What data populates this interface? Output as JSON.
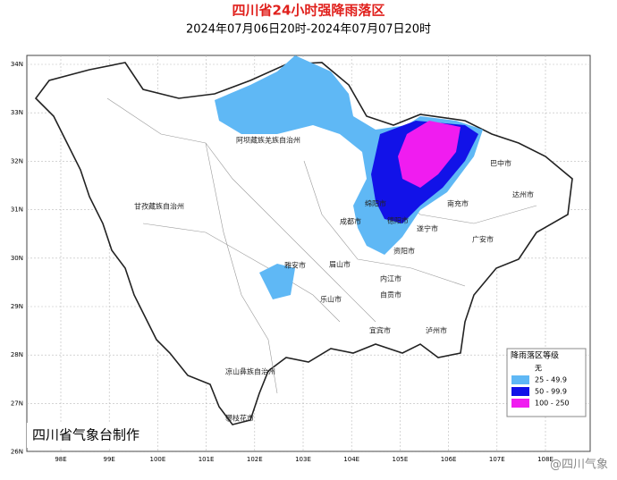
{
  "header": {
    "title": "四川省24小时强降雨落区",
    "subtitle": "2024年07月06日20时-2024年07月07日20时"
  },
  "axes": {
    "lat_labels": [
      "34N",
      "33N",
      "32N",
      "31N",
      "30N",
      "29N",
      "28N",
      "27N",
      "26N"
    ],
    "lon_labels": [
      "98E",
      "99E",
      "100E",
      "101E",
      "102E",
      "103E",
      "104E",
      "105E",
      "106E",
      "107E",
      "108E"
    ]
  },
  "places": [
    {
      "label": "阿坝藏族羌族自治州"
    },
    {
      "label": "甘孜藏族自治州"
    },
    {
      "label": "巴中市"
    },
    {
      "label": "达州市"
    },
    {
      "label": "南充市"
    },
    {
      "label": "广安市"
    },
    {
      "label": "绵阳市"
    },
    {
      "label": "德阳市"
    },
    {
      "label": "成都市"
    },
    {
      "label": "遂宁市"
    },
    {
      "label": "资阳市"
    },
    {
      "label": "雅安市"
    },
    {
      "label": "眉山市"
    },
    {
      "label": "乐山市"
    },
    {
      "label": "内江市"
    },
    {
      "label": "自贡市"
    },
    {
      "label": "宜宾市"
    },
    {
      "label": "泸州市"
    },
    {
      "label": "凉山彝族自治州"
    },
    {
      "label": "攀枝花市"
    }
  ],
  "legend": {
    "title": "降雨落区等级",
    "items": [
      {
        "label": "无",
        "color": "#ffffff"
      },
      {
        "label": "25 - 49.9",
        "color": "#5fb8f5"
      },
      {
        "label": "50 - 99.9",
        "color": "#1212e8"
      },
      {
        "label": "100 - 250",
        "color": "#f01cf0"
      }
    ]
  },
  "credit": "四川省气象台制作",
  "watermark": "@四川气象"
}
